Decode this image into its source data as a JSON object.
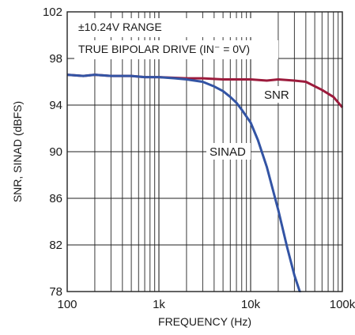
{
  "chart_data": {
    "type": "line",
    "title": "",
    "xlabel": "FREQUENCY (Hz)",
    "ylabel": "SNR, SINAD (dBFS)",
    "xscale": "log",
    "xlim": [
      100,
      100000
    ],
    "ylim": [
      78,
      102
    ],
    "x_ticks": [
      100,
      1000,
      10000,
      100000
    ],
    "x_tick_labels": [
      "100",
      "1k",
      "10k",
      "100k"
    ],
    "y_ticks": [
      78,
      82,
      86,
      90,
      94,
      98,
      102
    ],
    "y_tick_labels": [
      "78",
      "82",
      "86",
      "90",
      "94",
      "98",
      "102"
    ],
    "grid": true,
    "annotations": [
      {
        "text": "±10.24V RANGE"
      },
      {
        "text": "TRUE BIPOLAR DRIVE (IN⁻ = 0V)"
      }
    ],
    "series": [
      {
        "name": "SNR",
        "color": "#9c1b3c",
        "x": [
          100,
          150,
          200,
          300,
          500,
          700,
          1000,
          2000,
          3000,
          5000,
          7000,
          10000,
          15000,
          20000,
          30000,
          40000,
          60000,
          80000,
          100000
        ],
        "y": [
          96.6,
          96.5,
          96.6,
          96.5,
          96.5,
          96.4,
          96.4,
          96.3,
          96.3,
          96.2,
          96.2,
          96.2,
          96.1,
          96.2,
          96.1,
          96.0,
          95.3,
          94.7,
          93.8
        ]
      },
      {
        "name": "SINAD",
        "color": "#3354a4",
        "x": [
          100,
          150,
          200,
          300,
          500,
          700,
          1000,
          1500,
          2000,
          3000,
          4000,
          5000,
          6000,
          7000,
          8000,
          10000,
          12000,
          15000,
          20000,
          25000,
          30000,
          35000
        ],
        "y": [
          96.6,
          96.5,
          96.6,
          96.5,
          96.5,
          96.4,
          96.4,
          96.3,
          96.2,
          96.0,
          95.6,
          95.2,
          94.7,
          94.2,
          93.6,
          92.5,
          91.0,
          88.7,
          85.0,
          81.8,
          79.4,
          77.8
        ]
      }
    ]
  }
}
